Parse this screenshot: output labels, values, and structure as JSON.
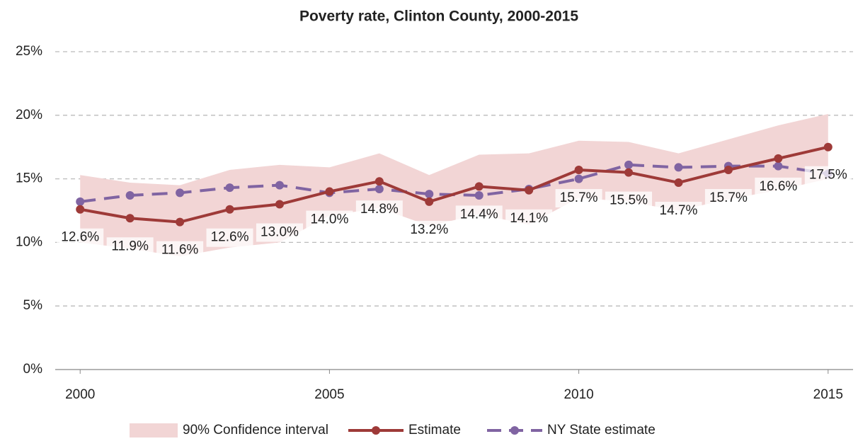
{
  "chart_data": {
    "type": "line",
    "title": "Poverty rate, Clinton County, 2000-2015",
    "x": [
      2000,
      2001,
      2002,
      2003,
      2004,
      2005,
      2006,
      2007,
      2008,
      2009,
      2010,
      2011,
      2012,
      2013,
      2014,
      2015
    ],
    "band": {
      "name": "90% Confidence interval",
      "color": "#f2d5d5",
      "lower": [
        10.0,
        9.5,
        8.9,
        9.6,
        10.0,
        12.1,
        12.7,
        11.3,
        12.2,
        11.4,
        13.5,
        13.2,
        12.5,
        13.4,
        14.1,
        15.0
      ],
      "upper": [
        15.3,
        14.7,
        14.5,
        15.7,
        16.1,
        15.9,
        17.0,
        15.3,
        16.9,
        17.0,
        18.0,
        17.9,
        17.0,
        18.1,
        19.2,
        20.1
      ]
    },
    "series": [
      {
        "name": "Estimate",
        "color": "#9e3a38",
        "dash": false,
        "values": [
          12.6,
          11.9,
          11.6,
          12.6,
          13.0,
          14.0,
          14.8,
          13.2,
          14.4,
          14.1,
          15.7,
          15.5,
          14.7,
          15.7,
          16.6,
          17.5
        ],
        "value_labels": [
          "12.6%",
          "11.9%",
          "11.6%",
          "12.6%",
          "13.0%",
          "14.0%",
          "14.8%",
          "13.2%",
          "14.4%",
          "14.1%",
          "15.7%",
          "15.5%",
          "14.7%",
          "15.7%",
          "16.6%",
          "17.5%"
        ]
      },
      {
        "name": "NY State estimate",
        "color": "#8064a2",
        "dash": true,
        "values": [
          13.2,
          13.7,
          13.9,
          14.3,
          14.5,
          13.9,
          14.2,
          13.8,
          13.7,
          14.2,
          15.0,
          16.1,
          15.9,
          16.0,
          16.0,
          15.4
        ]
      }
    ],
    "xlim": [
      1999.5,
      2015.5
    ],
    "xticks": [
      2000,
      2005,
      2010,
      2015
    ],
    "ylim": [
      0,
      25
    ],
    "yticks": [
      {
        "value": 0,
        "label": "0%"
      },
      {
        "value": 5,
        "label": "5%"
      },
      {
        "value": 10,
        "label": "10%"
      },
      {
        "value": 15,
        "label": "15%"
      },
      {
        "value": 20,
        "label": "20%"
      },
      {
        "value": 25,
        "label": "25%"
      }
    ],
    "grid": true
  }
}
